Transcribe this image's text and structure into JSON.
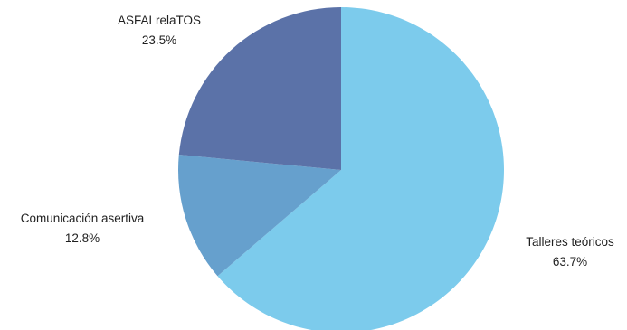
{
  "chart_data": {
    "type": "pie",
    "slices": [
      {
        "label": "Talleres teóricos",
        "value": 63.7,
        "value_label": "63.7%",
        "color": "#7ccbec"
      },
      {
        "label": "Comunicación asertiva",
        "value": 12.8,
        "value_label": "12.8%",
        "color": "#66a0cd"
      },
      {
        "label": "ASFALrelaTOS",
        "value": 23.5,
        "value_label": "23.5%",
        "color": "#5b72a8"
      }
    ],
    "start": "12 o'clock",
    "direction": "clockwise",
    "legend": "none"
  }
}
